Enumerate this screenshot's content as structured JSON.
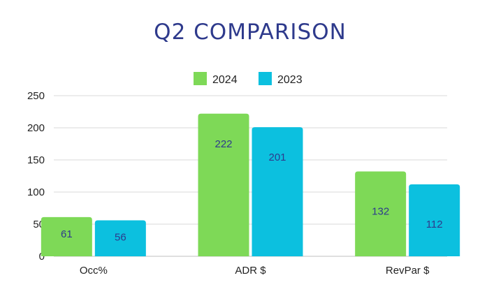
{
  "chart_data": {
    "type": "bar",
    "title": "Q2 COMPARISON",
    "xlabel": "",
    "ylabel": "",
    "categories": [
      "Occ%",
      "ADR $",
      "RevPar $"
    ],
    "series": [
      {
        "name": "2024",
        "values": [
          61,
          222,
          132
        ]
      },
      {
        "name": "2023",
        "values": [
          56,
          201,
          112
        ]
      }
    ],
    "ylim": [
      0,
      250
    ],
    "yticks": [
      0,
      50,
      100,
      150,
      200,
      250
    ],
    "grid": true,
    "legend_position": "top-center",
    "data_labels": "inside",
    "colors": {
      "series": [
        "#7ed957",
        "#0cc0df"
      ],
      "title": "#2e3a8c",
      "data_label": "#2e3a8c",
      "axis_text": "#222222",
      "grid": "#d9d9d9"
    }
  }
}
